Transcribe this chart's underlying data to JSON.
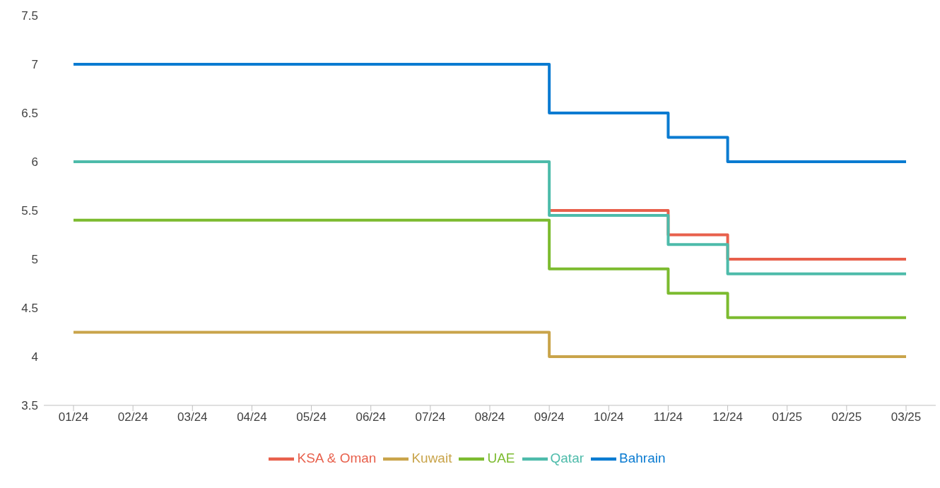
{
  "chart_data": {
    "type": "step",
    "categories": [
      "01/24",
      "02/24",
      "03/24",
      "04/24",
      "05/24",
      "06/24",
      "07/24",
      "08/24",
      "09/24",
      "10/24",
      "11/24",
      "12/24",
      "01/25",
      "02/25",
      "03/25"
    ],
    "series": [
      {
        "name": "KSA & Oman",
        "color": "#e8604c",
        "values": [
          null,
          null,
          null,
          null,
          null,
          null,
          null,
          null,
          5.5,
          5.5,
          5.25,
          5.0,
          5.0,
          5.0,
          5.0
        ]
      },
      {
        "name": "Kuwait",
        "color": "#c9a44a",
        "values": [
          4.25,
          4.25,
          4.25,
          4.25,
          4.25,
          4.25,
          4.25,
          4.25,
          4.0,
          4.0,
          4.0,
          4.0,
          4.0,
          4.0,
          4.0
        ]
      },
      {
        "name": "UAE",
        "color": "#7cbb2f",
        "values": [
          5.4,
          5.4,
          5.4,
          5.4,
          5.4,
          5.4,
          5.4,
          5.4,
          4.9,
          4.9,
          4.65,
          4.4,
          4.4,
          4.4,
          4.4
        ]
      },
      {
        "name": "Qatar",
        "color": "#4dbbaa",
        "values": [
          6.0,
          6.0,
          6.0,
          6.0,
          6.0,
          6.0,
          6.0,
          6.0,
          5.45,
          5.45,
          5.15,
          4.85,
          4.85,
          4.85,
          4.85
        ]
      },
      {
        "name": "Bahrain",
        "color": "#0a7bd1",
        "values": [
          7.0,
          7.0,
          7.0,
          7.0,
          7.0,
          7.0,
          7.0,
          7.0,
          6.5,
          6.5,
          6.25,
          6.0,
          6.0,
          6.0,
          6.0
        ]
      }
    ],
    "ylim": [
      3.5,
      7.5
    ],
    "yticks": [
      3.5,
      4,
      4.5,
      5,
      5.5,
      6,
      6.5,
      7,
      7.5
    ],
    "grid": false,
    "legend": "bottom",
    "marker": "none",
    "line_style": "solid"
  }
}
